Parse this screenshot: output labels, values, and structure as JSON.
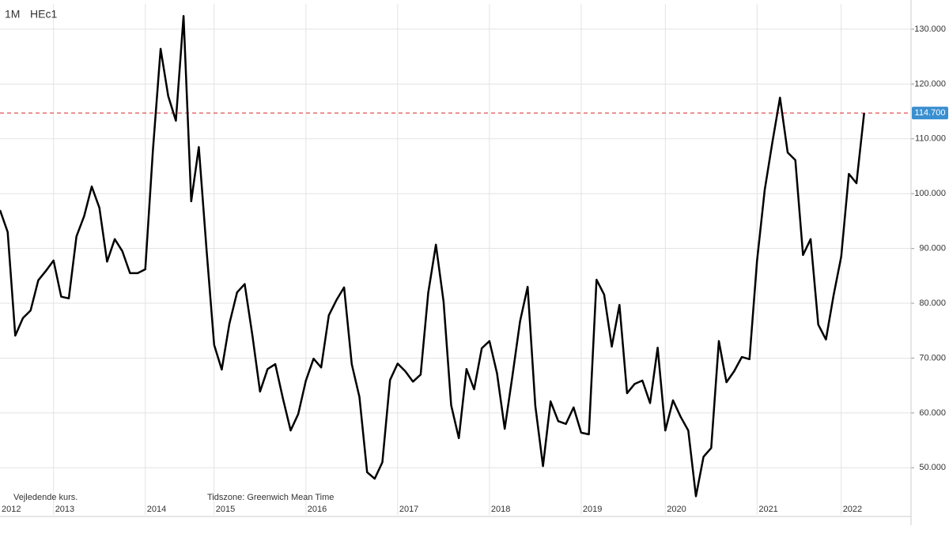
{
  "chart_data": {
    "type": "line",
    "interval": "1M",
    "symbol": "HEc1",
    "note": "Vejledende kurs.",
    "timezone": "Tidszone: Greenwich Mean Time",
    "categories": [
      "2012",
      null,
      null,
      null,
      null,
      null,
      null,
      "2013",
      null,
      null,
      null,
      null,
      null,
      null,
      null,
      null,
      null,
      null,
      null,
      "2014",
      null,
      null,
      null,
      null,
      null,
      null,
      null,
      null,
      "2015",
      null,
      null,
      null,
      null,
      null,
      null,
      null,
      null,
      null,
      null,
      null,
      "2016",
      null,
      null,
      null,
      null,
      null,
      null,
      null,
      null,
      null,
      null,
      null,
      "2017",
      null,
      null,
      null,
      null,
      null,
      null,
      null,
      null,
      null,
      null,
      null,
      "2018",
      null,
      null,
      null,
      null,
      null,
      null,
      null,
      null,
      null,
      null,
      null,
      "2019",
      null,
      null,
      null,
      null,
      null,
      null,
      null,
      null,
      null,
      null,
      "2020",
      null,
      null,
      null,
      null,
      null,
      null,
      null,
      null,
      null,
      null,
      null,
      "2021",
      null,
      null,
      null,
      null,
      null,
      null,
      null,
      null,
      null,
      null,
      "2022",
      null,
      null,
      null
    ],
    "values": [
      97.0,
      93.0,
      74.1,
      77.3,
      78.7,
      84.2,
      85.9,
      87.8,
      81.2,
      80.9,
      92.2,
      95.9,
      101.3,
      97.4,
      87.6,
      91.7,
      89.5,
      85.5,
      85.5,
      86.2,
      108.0,
      126.4,
      117.8,
      113.3,
      132.4,
      98.6,
      108.5,
      89.9,
      72.4,
      67.9,
      76.3,
      82.0,
      83.5,
      74.2,
      63.9,
      68.0,
      68.9,
      62.6,
      56.8,
      59.8,
      65.9,
      69.9,
      68.3,
      77.8,
      80.6,
      82.9,
      68.9,
      62.9,
      49.2,
      48.0,
      51.0,
      66.0,
      69.0,
      67.6,
      65.7,
      67.0,
      81.9,
      90.7,
      80.3,
      61.4,
      55.4,
      68.0,
      64.3,
      71.8,
      73.1,
      67.2,
      57.1,
      66.7,
      76.7,
      83.0,
      61.3,
      50.3,
      62.1,
      58.5,
      58.0,
      61.0,
      56.4,
      56.1,
      84.3,
      81.6,
      72.1,
      79.7,
      63.6,
      65.3,
      65.9,
      61.8,
      71.9,
      56.8,
      62.3,
      59.3,
      56.8,
      44.8,
      52.0,
      53.6,
      73.1,
      65.6,
      67.6,
      70.2,
      69.8,
      87.8,
      100.7,
      109.4,
      117.5,
      107.5,
      106.1,
      88.8,
      91.7,
      76.1,
      73.4,
      81.4,
      88.5,
      103.6,
      101.9,
      114.7
    ],
    "color": "#000000",
    "ylim": [
      41.4,
      134.6
    ],
    "yticks": [
      {
        "value": 50,
        "label": "50.000"
      },
      {
        "value": 60,
        "label": "60.000"
      },
      {
        "value": 70,
        "label": "70.000"
      },
      {
        "value": 80,
        "label": "80.000"
      },
      {
        "value": 90,
        "label": "90.000"
      },
      {
        "value": 100,
        "label": "100.000"
      },
      {
        "value": 110,
        "label": "110.000"
      },
      {
        "value": 120,
        "label": "120.000"
      },
      {
        "value": 130,
        "label": "130.000"
      }
    ],
    "last_price": {
      "value": 114.7,
      "label": "114.700",
      "color": "#e05050"
    },
    "grid": true
  }
}
